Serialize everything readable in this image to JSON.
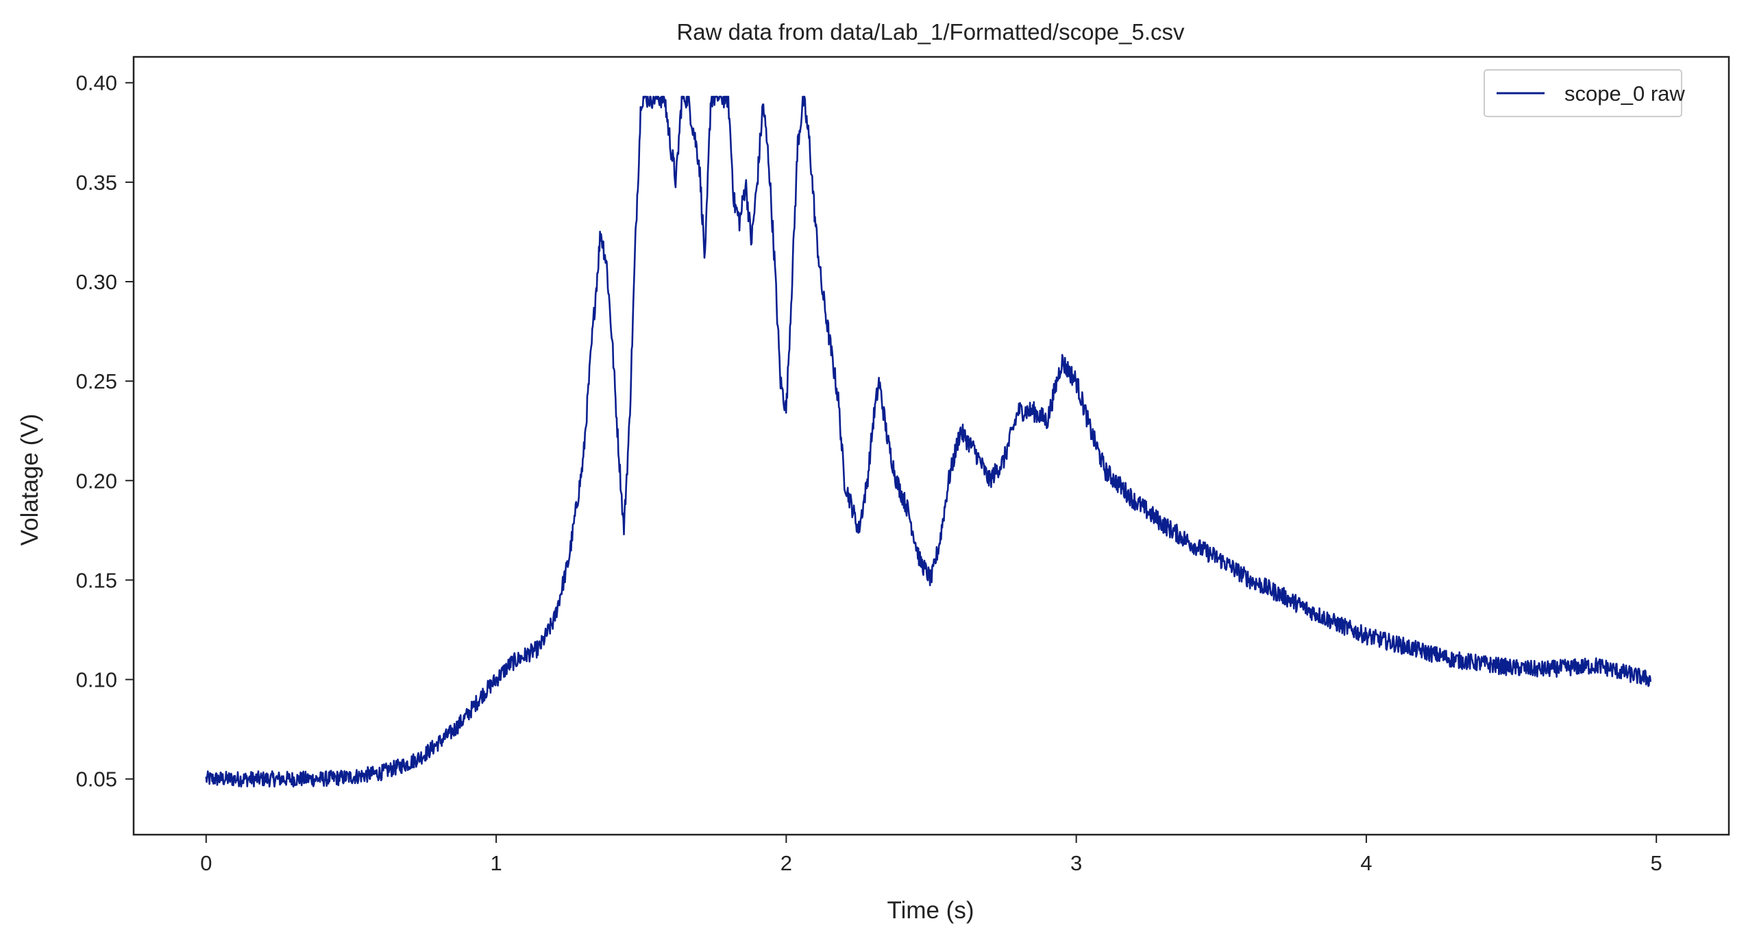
{
  "chart_data": {
    "type": "line",
    "title": "Raw data from data/Lab_1/Formatted/scope_5.csv",
    "xlabel": "Time (s)",
    "ylabel": "Volatage (V)",
    "xlim": [
      -0.25,
      5.25
    ],
    "ylim": [
      0.022,
      0.413
    ],
    "x_ticks": [
      0,
      1,
      2,
      3,
      4,
      5
    ],
    "x_tick_labels": [
      "0",
      "1",
      "2",
      "3",
      "4",
      "5"
    ],
    "y_ticks": [
      0.05,
      0.1,
      0.15,
      0.2,
      0.25,
      0.3,
      0.35,
      0.4
    ],
    "y_tick_labels": [
      "0.05",
      "0.10",
      "0.15",
      "0.20",
      "0.25",
      "0.30",
      "0.35",
      "0.40"
    ],
    "grid": false,
    "legend_position": "top-right",
    "series": [
      {
        "name": "scope_0 raw",
        "color": "#0a1f8f",
        "noise_amplitude": 0.006,
        "x": [
          0.0,
          0.1,
          0.2,
          0.3,
          0.4,
          0.5,
          0.6,
          0.7,
          0.75,
          0.8,
          0.85,
          0.9,
          0.95,
          1.0,
          1.05,
          1.1,
          1.15,
          1.2,
          1.25,
          1.3,
          1.33,
          1.36,
          1.38,
          1.4,
          1.42,
          1.44,
          1.46,
          1.48,
          1.5,
          1.55,
          1.58,
          1.6,
          1.62,
          1.64,
          1.66,
          1.7,
          1.72,
          1.74,
          1.76,
          1.8,
          1.82,
          1.84,
          1.86,
          1.88,
          1.9,
          1.92,
          1.94,
          1.96,
          1.98,
          2.0,
          2.02,
          2.04,
          2.06,
          2.08,
          2.1,
          2.12,
          2.15,
          2.18,
          2.2,
          2.25,
          2.28,
          2.3,
          2.32,
          2.35,
          2.38,
          2.42,
          2.46,
          2.5,
          2.53,
          2.56,
          2.6,
          2.65,
          2.7,
          2.75,
          2.8,
          2.85,
          2.9,
          2.95,
          3.0,
          3.05,
          3.1,
          3.2,
          3.3,
          3.4,
          3.5,
          3.6,
          3.7,
          3.8,
          3.9,
          4.0,
          4.1,
          4.2,
          4.3,
          4.4,
          4.5,
          4.6,
          4.7,
          4.8,
          4.9,
          4.98
        ],
        "y": [
          0.05,
          0.05,
          0.05,
          0.05,
          0.05,
          0.051,
          0.053,
          0.058,
          0.062,
          0.068,
          0.074,
          0.082,
          0.092,
          0.1,
          0.108,
          0.112,
          0.116,
          0.13,
          0.16,
          0.21,
          0.27,
          0.325,
          0.31,
          0.27,
          0.22,
          0.175,
          0.23,
          0.32,
          0.393,
          0.393,
          0.393,
          0.37,
          0.35,
          0.393,
          0.393,
          0.36,
          0.31,
          0.393,
          0.393,
          0.393,
          0.34,
          0.33,
          0.35,
          0.32,
          0.35,
          0.39,
          0.36,
          0.31,
          0.25,
          0.235,
          0.3,
          0.37,
          0.392,
          0.37,
          0.33,
          0.3,
          0.27,
          0.24,
          0.2,
          0.175,
          0.2,
          0.23,
          0.25,
          0.22,
          0.2,
          0.185,
          0.16,
          0.15,
          0.17,
          0.2,
          0.225,
          0.215,
          0.2,
          0.21,
          0.235,
          0.235,
          0.23,
          0.26,
          0.25,
          0.225,
          0.205,
          0.19,
          0.178,
          0.168,
          0.16,
          0.15,
          0.143,
          0.135,
          0.128,
          0.122,
          0.118,
          0.114,
          0.11,
          0.108,
          0.106,
          0.105,
          0.106,
          0.107,
          0.103,
          0.1
        ]
      }
    ]
  }
}
